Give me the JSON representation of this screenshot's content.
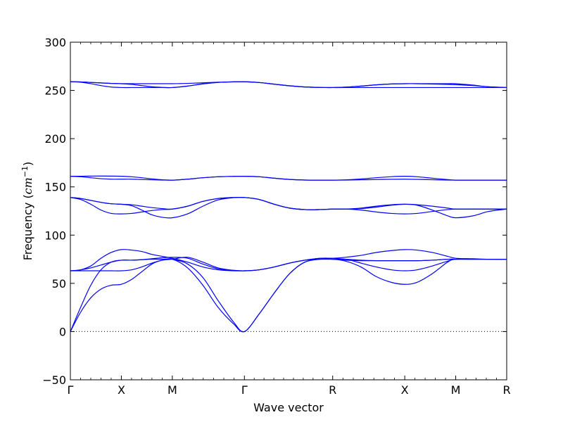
{
  "chart_data": {
    "type": "line",
    "title": "",
    "xlabel": "Wave vector",
    "ylabel_prefix": "Frequency (",
    "ylabel_unit": "cm",
    "ylabel_exp": "−1",
    "ylabel_suffix": ")",
    "ylim": [
      -50,
      300
    ],
    "yticks": [
      -50,
      0,
      50,
      100,
      150,
      200,
      250,
      300
    ],
    "ytick_labels": [
      "−50",
      "0",
      "50",
      "100",
      "150",
      "200",
      "250",
      "300"
    ],
    "xlim": [
      0,
      4.561
    ],
    "high_symmetry_points": [
      {
        "label": "Γ",
        "x": 0
      },
      {
        "label": "X",
        "x": 0.5
      },
      {
        "label": "M",
        "x": 1.0
      },
      {
        "label": "Γ",
        "x": 1.707
      },
      {
        "label": "R",
        "x": 2.573
      },
      {
        "label": "X",
        "x": 3.28
      },
      {
        "label": "M",
        "x": 3.78
      },
      {
        "label": "R",
        "x": 4.28
      }
    ],
    "zero_line": true,
    "line_color": "#0000ff",
    "series": [
      {
        "x": [
          0,
          0.1,
          0.2,
          0.3,
          0.4,
          0.5,
          0.6,
          0.7,
          0.8,
          0.9,
          1.0,
          1.15,
          1.3,
          1.45,
          1.6,
          1.707,
          1.85,
          2.0,
          2.15,
          2.3,
          2.45,
          2.573,
          2.7,
          2.85,
          3.0,
          3.15,
          3.28,
          3.4,
          3.55,
          3.7,
          3.78,
          3.95,
          4.1,
          4.28
        ],
        "y": [
          0,
          20,
          35,
          44,
          48,
          49,
          54,
          62,
          70,
          74,
          75,
          66,
          48,
          25,
          8,
          0,
          18,
          40,
          60,
          72,
          75,
          75,
          73,
          67,
          57,
          51,
          49,
          51,
          60,
          72,
          75,
          75,
          75,
          75
        ]
      },
      {
        "x": [
          0,
          0.1,
          0.2,
          0.3,
          0.4,
          0.5,
          0.6,
          0.7,
          0.8,
          0.9,
          1.0,
          1.15,
          1.3,
          1.45,
          1.6,
          1.707,
          1.85,
          2.0,
          2.15,
          2.3,
          2.45,
          2.573,
          2.7,
          2.85,
          3.0,
          3.15,
          3.28,
          3.4,
          3.55,
          3.7,
          3.78,
          3.95,
          4.1,
          4.28
        ],
        "y": [
          0,
          25,
          48,
          64,
          72,
          74,
          74,
          74.5,
          75,
          75,
          75,
          70,
          56,
          32,
          10,
          0,
          18,
          40,
          60,
          72,
          75,
          75,
          74,
          73.5,
          73.5,
          73.5,
          73.5,
          73.5,
          74,
          75,
          75,
          75,
          75,
          75
        ]
      },
      {
        "x": [
          0,
          0.1,
          0.2,
          0.3,
          0.4,
          0.5,
          0.6,
          0.7,
          0.8,
          0.9,
          1.0,
          1.15,
          1.3,
          1.45,
          1.6,
          1.707,
          1.85,
          2.0,
          2.15,
          2.3,
          2.45,
          2.573,
          2.7,
          2.85,
          3.0,
          3.15,
          3.28,
          3.4,
          3.55,
          3.7,
          3.78,
          3.95,
          4.1,
          4.28
        ],
        "y": [
          63,
          64,
          68,
          76,
          82,
          85,
          84.5,
          83,
          80,
          78,
          76,
          72,
          67,
          64,
          63,
          63,
          64,
          67,
          71,
          74,
          75,
          75,
          75,
          71,
          67,
          64,
          63,
          64,
          68,
          73,
          75,
          75,
          75,
          75
        ]
      },
      {
        "x": [
          0,
          0.1,
          0.2,
          0.3,
          0.4,
          0.5,
          0.6,
          0.7,
          0.8,
          0.9,
          1.0,
          1.15,
          1.3,
          1.45,
          1.6,
          1.707,
          1.85,
          2.0,
          2.15,
          2.3,
          2.45,
          2.573,
          2.7,
          2.85,
          3.0,
          3.15,
          3.28,
          3.4,
          3.55,
          3.7,
          3.78,
          3.95,
          4.1,
          4.28
        ],
        "y": [
          63,
          63,
          63,
          63,
          63,
          63,
          64,
          67,
          71,
          74,
          75,
          77,
          72,
          66,
          63.5,
          63,
          64,
          67,
          71,
          74,
          76,
          76,
          77,
          79,
          82,
          84,
          85,
          84.5,
          82,
          78,
          76,
          75.5,
          75,
          75
        ]
      },
      {
        "x": [
          0,
          0.1,
          0.2,
          0.3,
          0.4,
          0.5,
          0.6,
          0.7,
          0.8,
          0.9,
          1.0,
          1.15,
          1.3,
          1.45,
          1.6,
          1.707,
          1.85,
          2.0,
          2.15,
          2.3,
          2.45,
          2.573,
          2.7,
          2.85,
          3.0,
          3.15,
          3.28,
          3.4,
          3.55,
          3.7,
          3.78,
          3.95,
          4.1,
          4.28
        ],
        "y": [
          63,
          64,
          66,
          69,
          72,
          74,
          74,
          74.5,
          75.5,
          76.5,
          77,
          76,
          70,
          65,
          63.5,
          63,
          64,
          67,
          71,
          74,
          76,
          76,
          75,
          74,
          73.5,
          73.5,
          73.5,
          73.5,
          74,
          75,
          75,
          75,
          75,
          75
        ]
      },
      {
        "x": [
          0,
          0.1,
          0.2,
          0.3,
          0.4,
          0.5,
          0.6,
          0.7,
          0.8,
          0.9,
          1.0,
          1.15,
          1.3,
          1.45,
          1.6,
          1.707,
          1.85,
          2.0,
          2.15,
          2.3,
          2.45,
          2.573,
          2.7,
          2.85,
          3.0,
          3.15,
          3.28,
          3.4,
          3.55,
          3.7,
          3.78,
          3.95,
          4.1,
          4.28
        ],
        "y": [
          139,
          137,
          132,
          126,
          122.5,
          122,
          122.5,
          124,
          125.5,
          126.5,
          127,
          130,
          135,
          138,
          139,
          139,
          137,
          132,
          128,
          126.5,
          126.5,
          127,
          127,
          126,
          124,
          122.5,
          122,
          122.5,
          124.5,
          126.5,
          127,
          127,
          127,
          127
        ]
      },
      {
        "x": [
          0,
          0.1,
          0.2,
          0.3,
          0.4,
          0.5,
          0.6,
          0.7,
          0.8,
          0.9,
          1.0,
          1.15,
          1.3,
          1.45,
          1.6,
          1.707,
          1.85,
          2.0,
          2.15,
          2.3,
          2.45,
          2.573,
          2.7,
          2.85,
          3.0,
          3.15,
          3.28,
          3.4,
          3.55,
          3.7,
          3.78,
          3.95,
          4.1,
          4.28
        ],
        "y": [
          139,
          138,
          136,
          134,
          132.5,
          132,
          130.5,
          126,
          121,
          118.5,
          118,
          122,
          130,
          136.5,
          138.8,
          139,
          137,
          132,
          128,
          126.5,
          126.5,
          127,
          127,
          128,
          130,
          131.5,
          132,
          131,
          126,
          120,
          118,
          120,
          124.5,
          127
        ]
      },
      {
        "x": [
          0,
          0.1,
          0.2,
          0.3,
          0.4,
          0.5,
          0.6,
          0.7,
          0.8,
          0.9,
          1.0,
          1.15,
          1.3,
          1.45,
          1.6,
          1.707,
          1.85,
          2.0,
          2.15,
          2.3,
          2.45,
          2.573,
          2.7,
          2.85,
          3.0,
          3.15,
          3.28,
          3.4,
          3.55,
          3.7,
          3.78,
          3.95,
          4.1,
          4.28
        ],
        "y": [
          139,
          138,
          136,
          134,
          132.5,
          132,
          131.5,
          130,
          128.5,
          127.5,
          127,
          130,
          135,
          138,
          139,
          139,
          137,
          132,
          128,
          126.5,
          126.5,
          127,
          127,
          127.5,
          129,
          131,
          132,
          131.5,
          130,
          128,
          127,
          127,
          127,
          127
        ]
      },
      {
        "x": [
          0,
          0.1,
          0.2,
          0.3,
          0.4,
          0.5,
          0.6,
          0.7,
          0.8,
          0.9,
          1.0,
          1.15,
          1.3,
          1.45,
          1.6,
          1.707,
          1.85,
          2.0,
          2.15,
          2.3,
          2.45,
          2.573,
          2.7,
          2.85,
          3.0,
          3.15,
          3.28,
          3.4,
          3.55,
          3.7,
          3.78,
          3.95,
          4.1,
          4.28
        ],
        "y": [
          161,
          160.5,
          159.5,
          158.5,
          158,
          158,
          158,
          157.6,
          157.3,
          157.1,
          157,
          158,
          159.5,
          160.5,
          160.9,
          161,
          160.5,
          159,
          157.7,
          157.1,
          157,
          157,
          157.1,
          157.3,
          157.6,
          157.9,
          158,
          157.8,
          157.4,
          157.1,
          157,
          157,
          157,
          157
        ]
      },
      {
        "x": [
          0,
          0.1,
          0.2,
          0.3,
          0.4,
          0.5,
          0.6,
          0.7,
          0.8,
          0.9,
          1.0,
          1.15,
          1.3,
          1.45,
          1.6,
          1.707,
          1.85,
          2.0,
          2.15,
          2.3,
          2.45,
          2.573,
          2.7,
          2.85,
          3.0,
          3.15,
          3.28,
          3.4,
          3.55,
          3.7,
          3.78,
          3.95,
          4.1,
          4.28
        ],
        "y": [
          161,
          161,
          161.2,
          161.3,
          161.2,
          161,
          160.5,
          159.5,
          158.3,
          157.4,
          157,
          158,
          159.5,
          160.5,
          160.9,
          161,
          160.5,
          159,
          157.7,
          157.1,
          157,
          157,
          157.3,
          158.2,
          159.5,
          160.6,
          161,
          160.5,
          159,
          157.6,
          157,
          157,
          157,
          157
        ]
      },
      {
        "x": [
          0,
          0.1,
          0.2,
          0.3,
          0.4,
          0.5,
          0.6,
          0.7,
          0.8,
          0.9,
          1.0,
          1.15,
          1.3,
          1.45,
          1.6,
          1.707,
          1.85,
          2.0,
          2.15,
          2.3,
          2.45,
          2.573,
          2.7,
          2.85,
          3.0,
          3.15,
          3.28,
          3.4,
          3.55,
          3.7,
          3.78,
          3.95,
          4.1,
          4.28
        ],
        "y": [
          259,
          258.8,
          258.3,
          257.8,
          257.3,
          257,
          257,
          257,
          257,
          257,
          257,
          257.3,
          257.9,
          258.5,
          258.9,
          259,
          258.2,
          256.5,
          254.8,
          253.6,
          253.1,
          253,
          253.4,
          254.5,
          255.8,
          256.7,
          257,
          257,
          257,
          257,
          257,
          255.5,
          253.8,
          253
        ]
      },
      {
        "x": [
          0,
          0.1,
          0.2,
          0.3,
          0.4,
          0.5,
          0.6,
          0.7,
          0.8,
          0.9,
          1.0,
          1.15,
          1.3,
          1.45,
          1.6,
          1.707,
          1.85,
          2.0,
          2.15,
          2.3,
          2.45,
          2.573,
          2.7,
          2.85,
          3.0,
          3.15,
          3.28,
          3.4,
          3.55,
          3.7,
          3.78,
          3.95,
          4.1,
          4.28
        ],
        "y": [
          259,
          258.5,
          257,
          255,
          253.5,
          253,
          253,
          253,
          253,
          253,
          253,
          254.5,
          256.8,
          258.3,
          258.9,
          259,
          258.2,
          256.5,
          254.8,
          253.6,
          253.1,
          253,
          253,
          253,
          253,
          253,
          253,
          253,
          253,
          253,
          253,
          253,
          253,
          253
        ]
      },
      {
        "x": [
          0,
          0.1,
          0.2,
          0.3,
          0.4,
          0.5,
          0.6,
          0.7,
          0.8,
          0.9,
          1.0,
          1.15,
          1.3,
          1.45,
          1.6,
          1.707,
          1.85,
          2.0,
          2.15,
          2.3,
          2.45,
          2.573,
          2.7,
          2.85,
          3.0,
          3.15,
          3.28,
          3.4,
          3.55,
          3.7,
          3.78,
          3.95,
          4.1,
          4.28
        ],
        "y": [
          259,
          258.8,
          258.3,
          257.8,
          257.3,
          257,
          256.3,
          255,
          253.8,
          253.2,
          253,
          254.5,
          256.8,
          258.3,
          258.9,
          259,
          258.2,
          256.5,
          254.8,
          253.6,
          253.1,
          253,
          253.4,
          254.5,
          255.8,
          256.7,
          257,
          257,
          256.6,
          256.2,
          256,
          255,
          253.8,
          253
        ]
      }
    ]
  }
}
